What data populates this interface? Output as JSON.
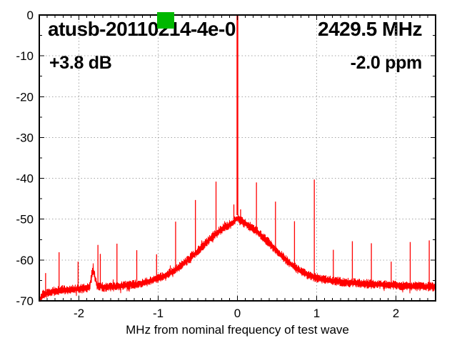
{
  "chart_data": {
    "type": "line",
    "title": "atusb-20110214-4e-0",
    "carrier_frequency_label": "2429.5 MHz",
    "gain_label": "+3.8 dB",
    "ppm_label": "-2.0 ppm",
    "xlabel": "MHz from nominal frequency of test wave",
    "ylabel": "",
    "xlim": [
      -2.5,
      2.5
    ],
    "ylim": [
      -70,
      0
    ],
    "x_major_ticks": [
      -2,
      -1,
      0,
      1,
      2
    ],
    "x_minor_step": 0.1,
    "y_major_ticks": [
      0,
      -10,
      -20,
      -30,
      -40,
      -50,
      -60,
      -70
    ],
    "y_minor_step": 5,
    "grid": "dotted",
    "legend": "none",
    "trace_color": "#ff0000",
    "grid_color": "#a6a6a6",
    "axis_color": "#000000",
    "marker_color": "#00b800",
    "carrier": {
      "f": 0.0,
      "peak_db": -0.2,
      "skirt_top_db": -49.8
    },
    "noise_halfwidth_db": 1.1,
    "envelope_db": [
      [
        -2.5,
        -70.3
      ],
      [
        -2.48,
        -69.2
      ],
      [
        -2.45,
        -68.4
      ],
      [
        -2.4,
        -68.1
      ],
      [
        -2.3,
        -67.6
      ],
      [
        -2.2,
        -67.3
      ],
      [
        -2.1,
        -67.2
      ],
      [
        -2.0,
        -67.1
      ],
      [
        -1.95,
        -67.0
      ],
      [
        -1.9,
        -66.8
      ],
      [
        -1.86,
        -66.4
      ],
      [
        -1.84,
        -63.5
      ],
      [
        -1.82,
        -62.3
      ],
      [
        -1.8,
        -64.0
      ],
      [
        -1.77,
        -66.2
      ],
      [
        -1.7,
        -66.6
      ],
      [
        -1.6,
        -66.6
      ],
      [
        -1.5,
        -66.4
      ],
      [
        -1.4,
        -66.2
      ],
      [
        -1.3,
        -66.0
      ],
      [
        -1.2,
        -65.6
      ],
      [
        -1.1,
        -65.1
      ],
      [
        -1.0,
        -64.5
      ],
      [
        -0.9,
        -63.7
      ],
      [
        -0.8,
        -62.6
      ],
      [
        -0.7,
        -61.2
      ],
      [
        -0.6,
        -59.6
      ],
      [
        -0.5,
        -57.8
      ],
      [
        -0.4,
        -55.9
      ],
      [
        -0.3,
        -54.0
      ],
      [
        -0.25,
        -53.2
      ],
      [
        -0.2,
        -52.5
      ],
      [
        -0.15,
        -51.9
      ],
      [
        -0.1,
        -51.4
      ],
      [
        -0.05,
        -50.8
      ],
      [
        -0.02,
        -50.1
      ],
      [
        0.0,
        -49.8
      ],
      [
        0.02,
        -50.0
      ],
      [
        0.05,
        -50.5
      ],
      [
        0.1,
        -51.1
      ],
      [
        0.15,
        -51.7
      ],
      [
        0.2,
        -52.3
      ],
      [
        0.25,
        -53.0
      ],
      [
        0.3,
        -53.9
      ],
      [
        0.4,
        -55.8
      ],
      [
        0.5,
        -57.8
      ],
      [
        0.6,
        -59.7
      ],
      [
        0.7,
        -61.4
      ],
      [
        0.8,
        -62.8
      ],
      [
        0.9,
        -63.7
      ],
      [
        1.0,
        -64.4
      ],
      [
        1.1,
        -64.8
      ],
      [
        1.2,
        -65.1
      ],
      [
        1.4,
        -65.5
      ],
      [
        1.6,
        -65.8
      ],
      [
        1.8,
        -66.0
      ],
      [
        2.0,
        -66.2
      ],
      [
        2.2,
        -66.4
      ],
      [
        2.5,
        -66.6
      ]
    ],
    "spurs_f_topdb": [
      [
        -2.42,
        -63.2
      ],
      [
        -2.25,
        -58.1
      ],
      [
        -2.01,
        -60.4
      ],
      [
        -1.76,
        -56.3
      ],
      [
        -1.73,
        -58.5
      ],
      [
        -1.52,
        -56.0
      ],
      [
        -1.27,
        -57.6
      ],
      [
        -1.02,
        -58.6
      ],
      [
        -0.78,
        -50.6
      ],
      [
        -0.53,
        -45.3
      ],
      [
        -0.27,
        -40.8
      ],
      [
        -0.045,
        -46.4
      ],
      [
        0.04,
        -47.6
      ],
      [
        0.24,
        -41.0
      ],
      [
        0.48,
        -45.7
      ],
      [
        0.72,
        -50.5
      ],
      [
        0.97,
        -40.3
      ],
      [
        1.21,
        -57.5
      ],
      [
        1.45,
        -55.4
      ],
      [
        1.69,
        -55.9
      ],
      [
        1.94,
        -60.4
      ],
      [
        2.18,
        -55.6
      ],
      [
        2.42,
        -55.2
      ]
    ]
  }
}
